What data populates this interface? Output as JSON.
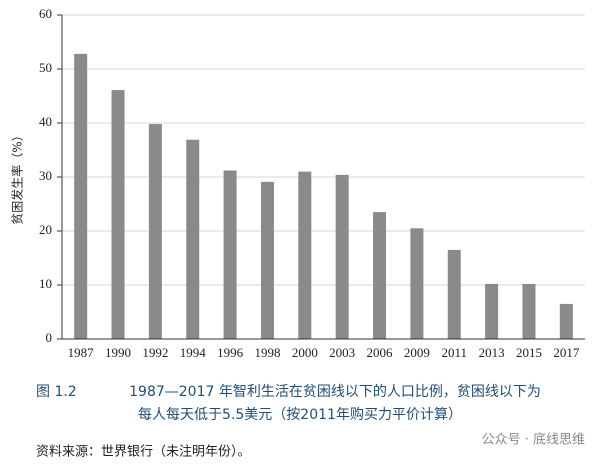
{
  "chart_data": {
    "type": "bar",
    "y_label": "贫困发生率（%）",
    "categories": [
      "1987",
      "1990",
      "1992",
      "1994",
      "1996",
      "1998",
      "2000",
      "2003",
      "2006",
      "2009",
      "2011",
      "2013",
      "2015",
      "2017"
    ],
    "values": [
      52.8,
      46.1,
      39.8,
      36.9,
      31.2,
      29.1,
      31.0,
      30.4,
      23.5,
      20.5,
      16.5,
      10.2,
      10.2,
      6.5
    ],
    "color": "#8a8a8a",
    "ylim": [
      0,
      60
    ],
    "yticks": [
      0,
      10,
      20,
      30,
      40,
      50,
      60
    ],
    "grid": true
  },
  "figure_label": "图 1.2",
  "caption": [
    "1987—2017 年智利生活在贫困线以下的人口比例，贫困线以下为",
    "每人每天低于5.5美元（按2011年购买力平价计算）"
  ],
  "source": "资料来源：世界银行（未注明年份）。",
  "watermark": "公众号 · 底线思维"
}
